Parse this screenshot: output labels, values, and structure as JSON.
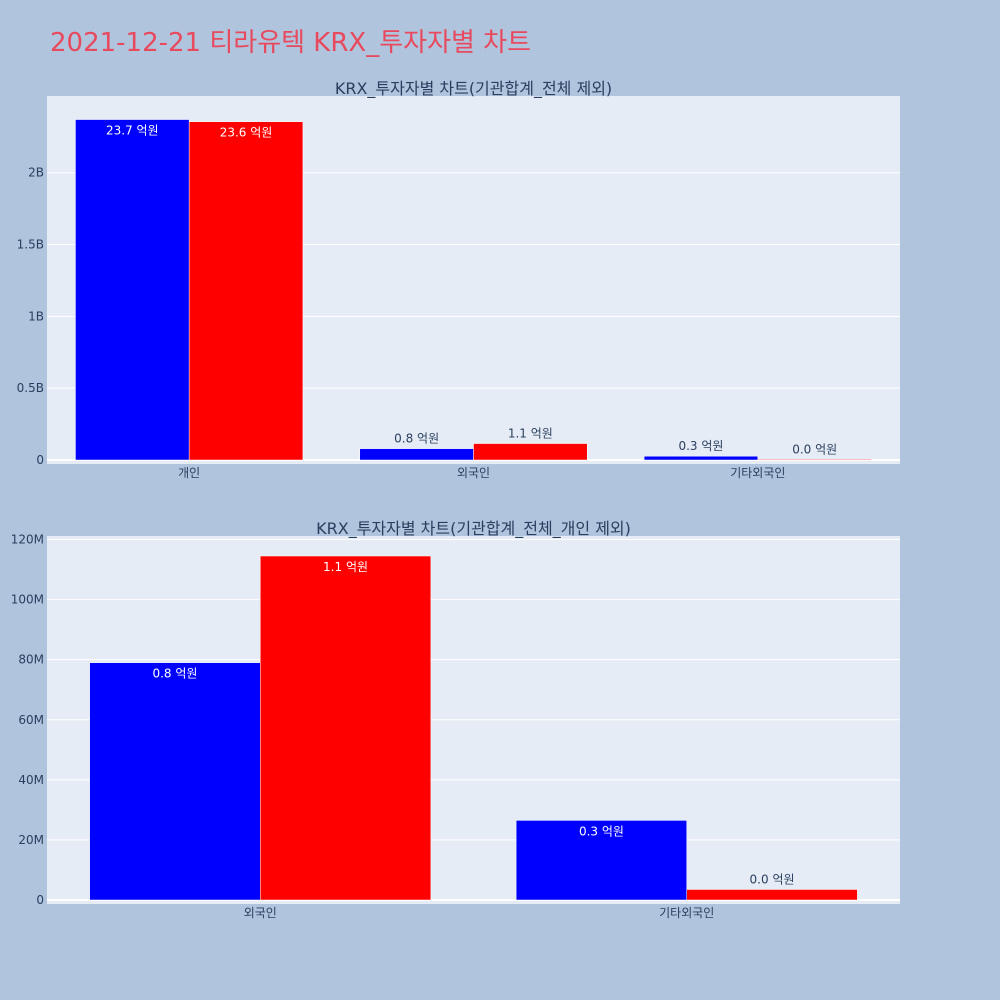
{
  "page": {
    "title": "2021-12-21 티라유텍 KRX_투자자별 차트"
  },
  "colors": {
    "background": "#b0c4de",
    "plot_bg": "#e5ecf6",
    "title": "#e8495c",
    "series_a": "#0000ff",
    "series_b": "#ff0000"
  },
  "chart_data": [
    {
      "type": "bar",
      "title": "KRX_투자자별 차트(기관합계_전체 제외)",
      "categories": [
        "개인",
        "외국인",
        "기타외국인"
      ],
      "series": [
        {
          "color": "#0000ff",
          "values": [
            2370000000,
            79000000,
            26500000
          ],
          "labels": [
            "23.7 억원",
            "0.8 억원",
            "0.3 억원"
          ]
        },
        {
          "color": "#ff0000",
          "values": [
            2355000000,
            114500000,
            3500000
          ],
          "labels": [
            "23.6 억원",
            "1.1 억원",
            "0.0 억원"
          ]
        }
      ],
      "ylim": [
        0,
        2520000000
      ],
      "yticks": [
        0,
        500000000,
        1000000000,
        1500000000,
        2000000000
      ],
      "ytick_labels": [
        "0",
        "0.5B",
        "1B",
        "1.5B",
        "2B"
      ],
      "xlabel": "",
      "ylabel": "",
      "grid": true
    },
    {
      "type": "bar",
      "title": "KRX_투자자별 차트(기관합계_전체_개인 제외)",
      "categories": [
        "외국인",
        "기타외국인"
      ],
      "series": [
        {
          "color": "#0000ff",
          "values": [
            79000000,
            26500000
          ],
          "labels": [
            "0.8 억원",
            "0.3 억원"
          ]
        },
        {
          "color": "#ff0000",
          "values": [
            114500000,
            3500000
          ],
          "labels": [
            "1.1 억원",
            "0.0 억원"
          ]
        }
      ],
      "ylim": [
        0,
        120500000
      ],
      "yticks": [
        0,
        20000000,
        40000000,
        60000000,
        80000000,
        100000000,
        120000000
      ],
      "ytick_labels": [
        "0",
        "20M",
        "40M",
        "60M",
        "80M",
        "100M",
        "120M"
      ],
      "xlabel": "",
      "ylabel": "",
      "grid": true
    }
  ]
}
